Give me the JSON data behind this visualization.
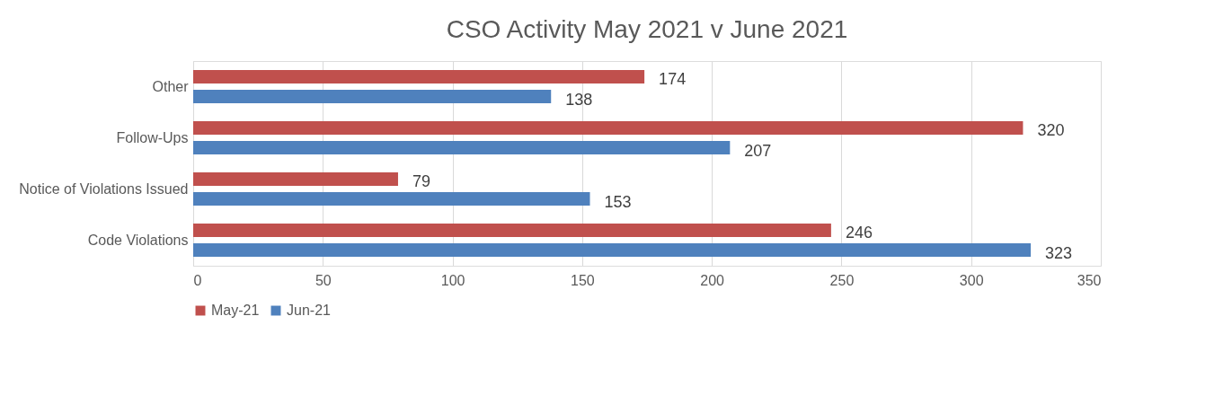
{
  "chart_data": {
    "type": "bar",
    "orientation": "horizontal",
    "title": "CSO Activity May 2021 v June 2021",
    "categories": [
      "Other",
      "Follow-Ups",
      "Notice of Violations Issued",
      "Code Violations"
    ],
    "series": [
      {
        "name": "May-21",
        "color": "#c0504d",
        "values": [
          174,
          320,
          79,
          246
        ]
      },
      {
        "name": "Jun-21",
        "color": "#4f81bd",
        "values": [
          138,
          207,
          153,
          323
        ]
      }
    ],
    "xlim": [
      0,
      350
    ],
    "xticks": [
      0,
      50,
      100,
      150,
      200,
      250,
      300,
      350
    ],
    "grid": "x",
    "legend": "bottom",
    "data_labels": true
  }
}
